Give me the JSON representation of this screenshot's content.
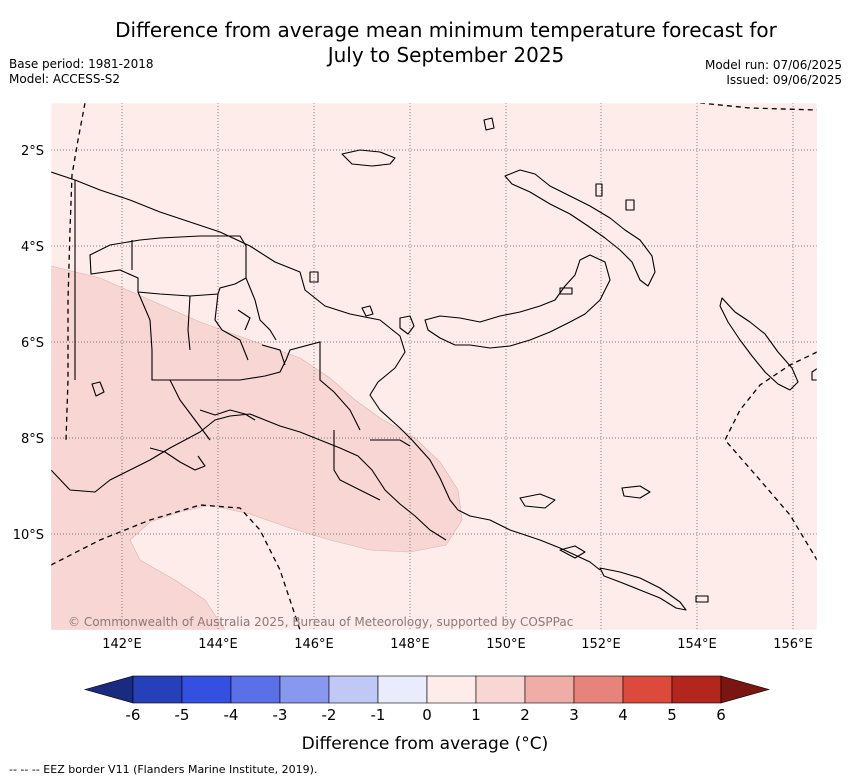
{
  "title_line1": "Difference from average mean minimum temperature forecast for",
  "title_line2": "July to September 2025",
  "base_period": "Base period: 1981-2018",
  "model": "Model: ACCESS-S2",
  "model_run": "Model run: 07/06/2025",
  "issued": "Issued: 09/06/2025",
  "copyright": "© Commonwealth of Australia 2025, Bureau of Meteorology, supported by COSPPac",
  "lat_labels": [
    "2°S",
    "4°S",
    "6°S",
    "8°S",
    "10°S"
  ],
  "lon_labels": [
    "142°E",
    "144°E",
    "146°E",
    "148°E",
    "150°E",
    "152°E",
    "154°E",
    "156°E"
  ],
  "colorbar": {
    "title": "Difference from average (°C)",
    "ticks": [
      "-6",
      "-5",
      "-4",
      "-3",
      "-2",
      "-1",
      "0",
      "1",
      "2",
      "3",
      "4",
      "5",
      "6"
    ],
    "colors": [
      "#1a2a80",
      "#2540b8",
      "#3350e0",
      "#5a70e6",
      "#8898ee",
      "#c0c8f6",
      "#e8ecfc",
      "#fdecea",
      "#f8d6d3",
      "#f0aca6",
      "#e6837a",
      "#dc4a3c",
      "#b2261e",
      "#7a1612"
    ]
  },
  "legend_footer": "-- -- -- EEZ border V11 (Flanders Marine Institute, 2019).",
  "colors": {
    "base_fill": "#fdecea",
    "warm_fill": "#f8d6d3",
    "gridline": "#555555",
    "coast": "#000000"
  }
}
